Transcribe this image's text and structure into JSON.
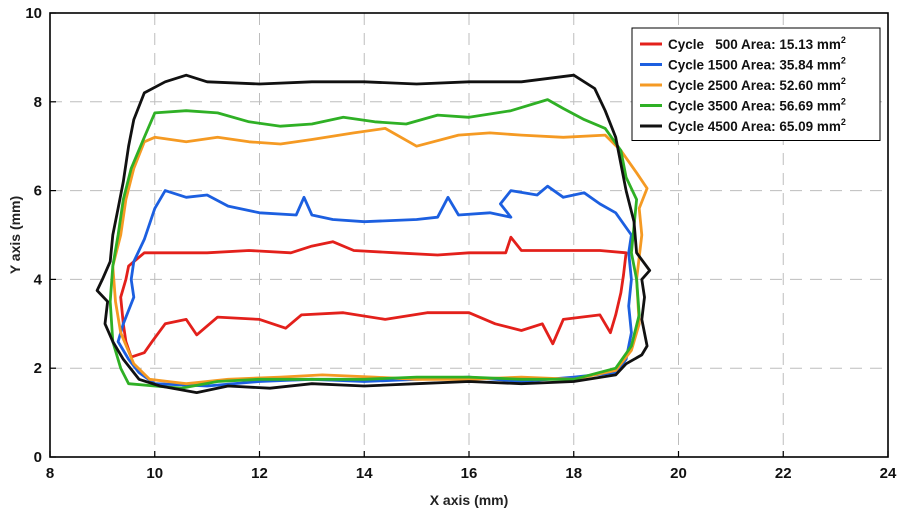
{
  "chart_data": {
    "type": "line",
    "title": "",
    "xlabel": "X axis (mm)",
    "ylabel": "Y axis (mm)",
    "xlim": [
      8,
      24
    ],
    "ylim": [
      0,
      10
    ],
    "xticks": [
      "8",
      "10",
      "12",
      "14",
      "16",
      "18",
      "20",
      "22",
      "24"
    ],
    "yticks": [
      "0",
      "2",
      "4",
      "6",
      "8",
      "10"
    ],
    "grid": true,
    "legend": {
      "placement": "top-right",
      "entries": [
        {
          "label": "Cycle   500 Area: 15.13 mm",
          "sup": "2"
        },
        {
          "label": "Cycle 1500 Area: 35.84 mm",
          "sup": "2"
        },
        {
          "label": "Cycle 2500 Area: 52.60 mm",
          "sup": "2"
        },
        {
          "label": "Cycle 3500 Area: 56.69 mm",
          "sup": "2"
        },
        {
          "label": "Cycle 4500 Area: 65.09 mm",
          "sup": "2"
        }
      ]
    },
    "series": [
      {
        "name": "Cycle 500",
        "color": "#e3201b",
        "closed": true,
        "points": [
          [
            9.55,
            2.25
          ],
          [
            9.8,
            2.35
          ],
          [
            9.95,
            2.6
          ],
          [
            10.2,
            3.0
          ],
          [
            10.6,
            3.1
          ],
          [
            10.8,
            2.75
          ],
          [
            11.2,
            3.15
          ],
          [
            12.0,
            3.1
          ],
          [
            12.5,
            2.9
          ],
          [
            12.8,
            3.2
          ],
          [
            13.6,
            3.25
          ],
          [
            14.4,
            3.1
          ],
          [
            15.2,
            3.25
          ],
          [
            16.0,
            3.25
          ],
          [
            16.5,
            3.0
          ],
          [
            17.0,
            2.85
          ],
          [
            17.4,
            3.0
          ],
          [
            17.6,
            2.55
          ],
          [
            17.8,
            3.1
          ],
          [
            18.5,
            3.2
          ],
          [
            18.7,
            2.8
          ],
          [
            18.8,
            3.2
          ],
          [
            18.9,
            3.7
          ],
          [
            18.95,
            4.1
          ],
          [
            19.0,
            4.6
          ],
          [
            18.5,
            4.65
          ],
          [
            17.0,
            4.65
          ],
          [
            16.8,
            4.95
          ],
          [
            16.7,
            4.6
          ],
          [
            16.0,
            4.6
          ],
          [
            15.4,
            4.55
          ],
          [
            14.6,
            4.6
          ],
          [
            13.8,
            4.65
          ],
          [
            13.4,
            4.85
          ],
          [
            13.0,
            4.75
          ],
          [
            12.6,
            4.6
          ],
          [
            11.8,
            4.65
          ],
          [
            11.0,
            4.6
          ],
          [
            9.8,
            4.6
          ],
          [
            9.5,
            4.3
          ],
          [
            9.45,
            4.0
          ],
          [
            9.35,
            3.6
          ],
          [
            9.4,
            3.0
          ],
          [
            9.45,
            2.6
          ]
        ]
      },
      {
        "name": "Cycle 1500",
        "color": "#1c5fe0",
        "closed": true,
        "points": [
          [
            9.5,
            2.2
          ],
          [
            9.7,
            1.9
          ],
          [
            10.0,
            1.65
          ],
          [
            11.0,
            1.6
          ],
          [
            12.0,
            1.7
          ],
          [
            13.0,
            1.75
          ],
          [
            14.0,
            1.7
          ],
          [
            15.0,
            1.75
          ],
          [
            16.0,
            1.8
          ],
          [
            17.0,
            1.7
          ],
          [
            18.0,
            1.8
          ],
          [
            18.8,
            1.9
          ],
          [
            19.0,
            2.2
          ],
          [
            19.1,
            2.8
          ],
          [
            19.05,
            3.4
          ],
          [
            19.1,
            4.0
          ],
          [
            19.05,
            4.6
          ],
          [
            19.1,
            5.0
          ],
          [
            18.8,
            5.5
          ],
          [
            18.5,
            5.7
          ],
          [
            18.2,
            5.95
          ],
          [
            17.8,
            5.85
          ],
          [
            17.5,
            6.1
          ],
          [
            17.3,
            5.9
          ],
          [
            16.8,
            6.0
          ],
          [
            16.6,
            5.7
          ],
          [
            16.8,
            5.4
          ],
          [
            16.4,
            5.5
          ],
          [
            15.8,
            5.45
          ],
          [
            15.6,
            5.85
          ],
          [
            15.4,
            5.4
          ],
          [
            15.0,
            5.35
          ],
          [
            14.0,
            5.3
          ],
          [
            13.4,
            5.35
          ],
          [
            13.0,
            5.45
          ],
          [
            12.85,
            5.85
          ],
          [
            12.7,
            5.45
          ],
          [
            12.0,
            5.5
          ],
          [
            11.4,
            5.65
          ],
          [
            11.0,
            5.9
          ],
          [
            10.6,
            5.85
          ],
          [
            10.2,
            6.0
          ],
          [
            10.0,
            5.6
          ],
          [
            9.8,
            4.9
          ],
          [
            9.6,
            4.4
          ],
          [
            9.55,
            4.0
          ],
          [
            9.6,
            3.6
          ],
          [
            9.4,
            3.0
          ],
          [
            9.3,
            2.6
          ]
        ]
      },
      {
        "name": "Cycle 2500",
        "color": "#f59a23",
        "closed": true,
        "points": [
          [
            9.6,
            2.1
          ],
          [
            9.9,
            1.75
          ],
          [
            10.6,
            1.65
          ],
          [
            11.4,
            1.75
          ],
          [
            12.4,
            1.8
          ],
          [
            13.2,
            1.85
          ],
          [
            14.2,
            1.8
          ],
          [
            15.0,
            1.75
          ],
          [
            16.0,
            1.75
          ],
          [
            17.0,
            1.8
          ],
          [
            18.0,
            1.75
          ],
          [
            18.8,
            1.95
          ],
          [
            19.1,
            2.4
          ],
          [
            19.25,
            3.0
          ],
          [
            19.2,
            4.0
          ],
          [
            19.3,
            5.0
          ],
          [
            19.25,
            5.6
          ],
          [
            19.4,
            6.05
          ],
          [
            19.2,
            6.4
          ],
          [
            18.9,
            6.9
          ],
          [
            18.6,
            7.25
          ],
          [
            17.8,
            7.2
          ],
          [
            17.0,
            7.25
          ],
          [
            16.4,
            7.3
          ],
          [
            15.8,
            7.25
          ],
          [
            15.0,
            7.0
          ],
          [
            14.4,
            7.4
          ],
          [
            13.8,
            7.3
          ],
          [
            13.0,
            7.15
          ],
          [
            12.4,
            7.05
          ],
          [
            11.8,
            7.1
          ],
          [
            11.2,
            7.2
          ],
          [
            10.6,
            7.1
          ],
          [
            10.0,
            7.2
          ],
          [
            9.8,
            7.1
          ],
          [
            9.6,
            6.5
          ],
          [
            9.45,
            5.8
          ],
          [
            9.35,
            5.0
          ],
          [
            9.2,
            4.3
          ],
          [
            9.25,
            3.5
          ],
          [
            9.35,
            2.8
          ]
        ]
      },
      {
        "name": "Cycle 3500",
        "color": "#2fb025",
        "closed": true,
        "points": [
          [
            9.5,
            1.65
          ],
          [
            10.0,
            1.6
          ],
          [
            10.5,
            1.55
          ],
          [
            11.2,
            1.7
          ],
          [
            12.0,
            1.75
          ],
          [
            13.0,
            1.75
          ],
          [
            14.0,
            1.75
          ],
          [
            15.0,
            1.8
          ],
          [
            16.0,
            1.8
          ],
          [
            17.0,
            1.75
          ],
          [
            18.0,
            1.75
          ],
          [
            18.8,
            2.0
          ],
          [
            19.1,
            2.5
          ],
          [
            19.25,
            3.2
          ],
          [
            19.2,
            4.0
          ],
          [
            19.1,
            4.6
          ],
          [
            19.15,
            5.2
          ],
          [
            19.2,
            5.8
          ],
          [
            19.0,
            6.3
          ],
          [
            18.9,
            6.9
          ],
          [
            18.6,
            7.4
          ],
          [
            18.2,
            7.6
          ],
          [
            17.8,
            7.85
          ],
          [
            17.5,
            8.05
          ],
          [
            16.8,
            7.8
          ],
          [
            16.0,
            7.65
          ],
          [
            15.4,
            7.7
          ],
          [
            14.8,
            7.5
          ],
          [
            14.2,
            7.55
          ],
          [
            13.6,
            7.65
          ],
          [
            13.0,
            7.5
          ],
          [
            12.4,
            7.45
          ],
          [
            11.8,
            7.55
          ],
          [
            11.2,
            7.75
          ],
          [
            10.6,
            7.8
          ],
          [
            10.0,
            7.75
          ],
          [
            9.8,
            7.2
          ],
          [
            9.55,
            6.5
          ],
          [
            9.4,
            5.8
          ],
          [
            9.3,
            5.0
          ],
          [
            9.2,
            4.3
          ],
          [
            9.15,
            3.5
          ],
          [
            9.2,
            2.6
          ],
          [
            9.35,
            2.0
          ]
        ]
      },
      {
        "name": "Cycle 4500",
        "color": "#111111",
        "closed": true,
        "points": [
          [
            9.4,
            2.2
          ],
          [
            9.7,
            1.75
          ],
          [
            10.1,
            1.6
          ],
          [
            10.8,
            1.45
          ],
          [
            11.4,
            1.6
          ],
          [
            12.2,
            1.55
          ],
          [
            13.0,
            1.65
          ],
          [
            14.0,
            1.6
          ],
          [
            15.0,
            1.65
          ],
          [
            16.0,
            1.7
          ],
          [
            17.0,
            1.65
          ],
          [
            18.0,
            1.7
          ],
          [
            18.8,
            1.85
          ],
          [
            19.0,
            2.1
          ],
          [
            19.3,
            2.3
          ],
          [
            19.4,
            2.5
          ],
          [
            19.3,
            3.1
          ],
          [
            19.35,
            3.6
          ],
          [
            19.3,
            4.0
          ],
          [
            19.45,
            4.2
          ],
          [
            19.2,
            4.6
          ],
          [
            19.15,
            5.3
          ],
          [
            19.0,
            6.0
          ],
          [
            18.9,
            6.6
          ],
          [
            18.8,
            7.2
          ],
          [
            18.6,
            7.8
          ],
          [
            18.4,
            8.3
          ],
          [
            18.0,
            8.6
          ],
          [
            17.0,
            8.45
          ],
          [
            16.0,
            8.45
          ],
          [
            15.0,
            8.4
          ],
          [
            14.0,
            8.45
          ],
          [
            13.0,
            8.45
          ],
          [
            12.0,
            8.4
          ],
          [
            11.0,
            8.45
          ],
          [
            10.6,
            8.6
          ],
          [
            10.2,
            8.45
          ],
          [
            9.8,
            8.2
          ],
          [
            9.6,
            7.6
          ],
          [
            9.5,
            7.0
          ],
          [
            9.4,
            6.2
          ],
          [
            9.3,
            5.6
          ],
          [
            9.2,
            5.0
          ],
          [
            9.15,
            4.4
          ],
          [
            9.0,
            4.0
          ],
          [
            8.9,
            3.75
          ],
          [
            9.1,
            3.5
          ],
          [
            9.05,
            3.0
          ],
          [
            9.2,
            2.6
          ]
        ]
      }
    ]
  }
}
